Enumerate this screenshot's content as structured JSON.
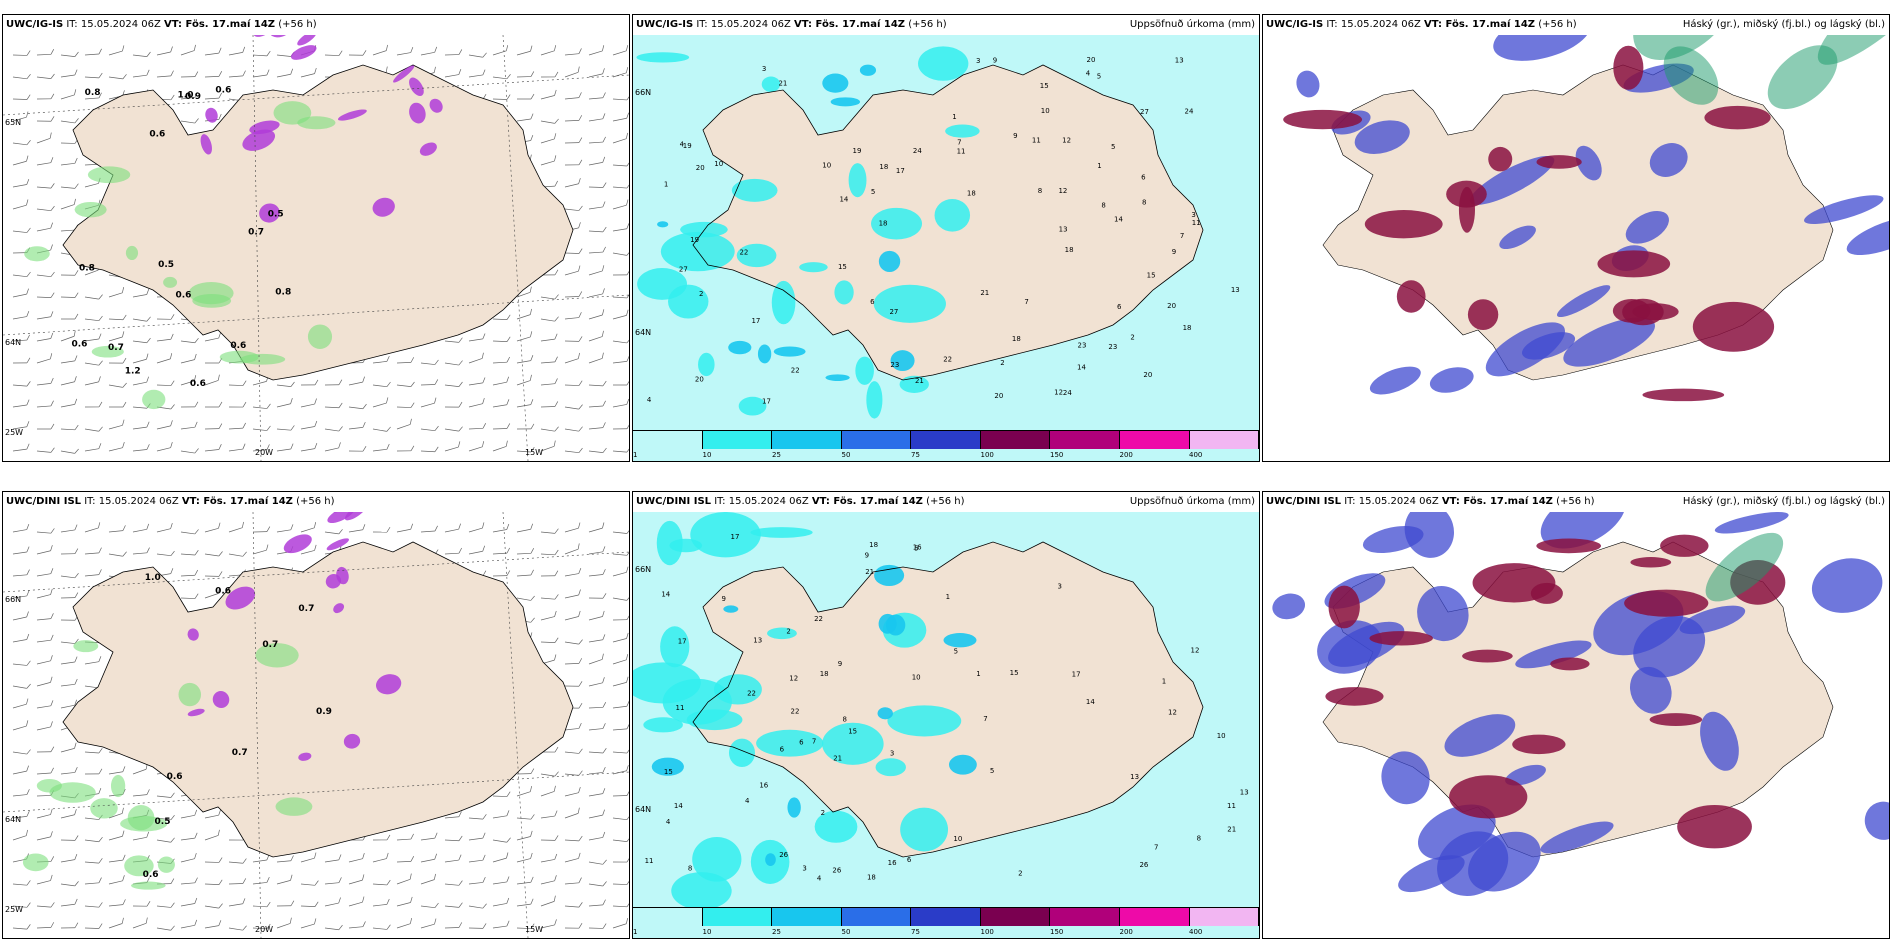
{
  "panels": [
    {
      "row": 0,
      "col": 0,
      "model": "UWC/IG-IS",
      "it": "IT: 15.05.2024 06Z",
      "vt": "VT: Fös. 17.maí 14Z",
      "lead": "(+56 h)",
      "label": "",
      "labels": [
        "1.0",
        "0.7",
        "0.6",
        "0.6",
        "0.5",
        "0.6",
        "0.9",
        "1.2",
        "0.6",
        "0.8",
        "0.8",
        "0.5",
        "0.7",
        "0.6",
        "0.8",
        "0.6"
      ],
      "grid": [
        "20W",
        "15W",
        "25W",
        "65N",
        "64N"
      ]
    },
    {
      "row": 0,
      "col": 1,
      "model": "UWC/IG-IS",
      "it": "IT: 15.05.2024 06Z",
      "vt": "VT: Fös. 17.maí 14Z",
      "lead": "(+56 h)",
      "label": "Uppsöfnuð úrkoma (mm)",
      "labels": [
        "20",
        "22",
        "21",
        "18",
        "15",
        "12",
        "27",
        "19",
        "20",
        "17",
        "23",
        "18",
        "24",
        "10",
        "9",
        "7",
        "6",
        "5",
        "4",
        "3",
        "2",
        "1",
        "11",
        "14",
        "13",
        "8"
      ],
      "grid": [
        "66N",
        "64N"
      ]
    },
    {
      "row": 0,
      "col": 2,
      "model": "UWC/IG-IS",
      "it": "IT: 15.05.2024 06Z",
      "vt": "VT: Fös. 17.maí 14Z",
      "lead": "(+56 h)",
      "label": "Háský (gr.), miðský (fj.bl.) og lágský (bl.)",
      "labels": [],
      "grid": []
    },
    {
      "row": 1,
      "col": 0,
      "model": "UWC/DINI ISL",
      "it": "IT: 15.05.2024 06Z",
      "vt": "VT: Fös. 17.maí 14Z",
      "lead": "(+56 h)",
      "label": "",
      "labels": [
        "0.5",
        "0.7",
        "0.9",
        "0.6",
        "0.7",
        "0.6",
        "0.6",
        "0.7",
        "1.0"
      ],
      "grid": [
        "20W",
        "15W",
        "25W",
        "66N",
        "64N"
      ]
    },
    {
      "row": 1,
      "col": 1,
      "model": "UWC/DINI ISL",
      "it": "IT: 15.05.2024 06Z",
      "vt": "VT: Fös. 17.maí 14Z",
      "lead": "(+56 h)",
      "label": "Uppsöfnuð úrkoma (mm)",
      "labels": [
        "14",
        "17",
        "15",
        "11",
        "18",
        "12",
        "13",
        "10",
        "9",
        "7",
        "5",
        "3",
        "2",
        "1",
        "21",
        "26",
        "16",
        "22",
        "8",
        "6",
        "4"
      ],
      "grid": [
        "66N",
        "64N"
      ]
    },
    {
      "row": 1,
      "col": 2,
      "model": "UWC/DINI ISL",
      "it": "IT: 15.05.2024 06Z",
      "vt": "VT: Fös. 17.maí 14Z",
      "lead": "(+56 h)",
      "label": "Háský (gr.), miðský (fj.bl.) og lágský (bl.)",
      "labels": [],
      "grid": []
    }
  ],
  "precip_legend": {
    "ticks": [
      "1",
      "10",
      "25",
      "50",
      "75",
      "100",
      "150",
      "200",
      "400"
    ],
    "colors": [
      "#bff8f8",
      "#33eeee",
      "#18c6ee",
      "#2a6ee8",
      "#2a3cc8",
      "#7a0050",
      "#b0007a",
      "#ee0aa8",
      "#f2b6f2"
    ]
  },
  "colors": {
    "land": "#f1e2d3",
    "coast": "#000000",
    "green": "#7de07d",
    "purple": "#b03cd8",
    "lowcloud": "#3f4ad0",
    "midcloud": "#8a1040",
    "highcloud": "#1a9a6a"
  }
}
